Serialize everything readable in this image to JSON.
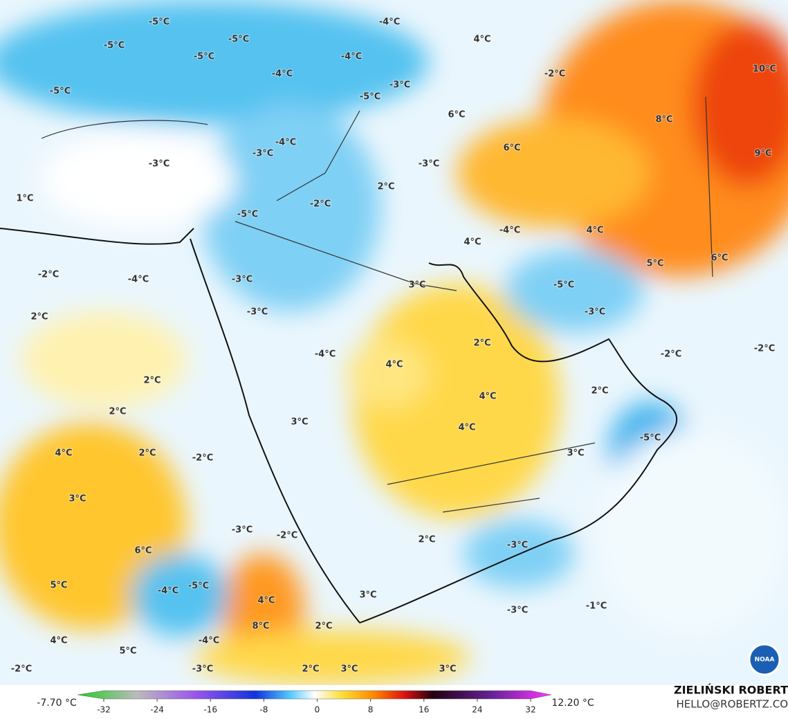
{
  "map_labels": [
    "-5°C",
    "-5°C",
    "-5°C",
    "-5°C",
    "-4°C",
    "-4°C",
    "-4°C",
    "-5°C",
    "-3°C",
    "-5°C",
    "4°C",
    "-2°C",
    "10°C",
    "6°C",
    "8°C",
    "6°C",
    "9°C",
    "-4°C",
    "-3°C",
    "-3°C",
    "-3°C",
    "1°C",
    "2°C",
    "-2°C",
    "-5°C",
    "4°C",
    "-4°C",
    "4°C",
    "5°C",
    "6°C",
    "-2°C",
    "-4°C",
    "-3°C",
    "3°C",
    "-5°C",
    "-3°C",
    "-3°C",
    "2°C",
    "2°C",
    "-2°C",
    "-2°C",
    "-4°C",
    "4°C",
    "2°C",
    "2°C",
    "4°C",
    "2°C",
    "3°C",
    "4°C",
    "-5°C",
    "4°C",
    "2°C",
    "-2°C",
    "3°C",
    "3°C",
    "-3°C",
    "-2°C",
    "2°C",
    "-3°C",
    "6°C",
    "5°C",
    "-4°C",
    "-5°C",
    "3°C",
    "4°C",
    "-1°C",
    "-3°C",
    "8°C",
    "2°C",
    "4°C",
    "5°C",
    "-4°C",
    "-2°C",
    "-3°C",
    "2°C",
    "3°C",
    "3°C"
  ],
  "colorbar": {
    "min_label": "-7.70 °C",
    "max_label": "12.20 °C",
    "range": [
      -32,
      32
    ],
    "ticks": [
      -32,
      -24,
      -16,
      -8,
      0,
      8,
      16,
      24,
      32
    ]
  },
  "credit": {
    "name": "ZIELIŃSKI ROBERT",
    "email": "HELLO@ROBERTZ.CO"
  },
  "logo": "NOAA"
}
